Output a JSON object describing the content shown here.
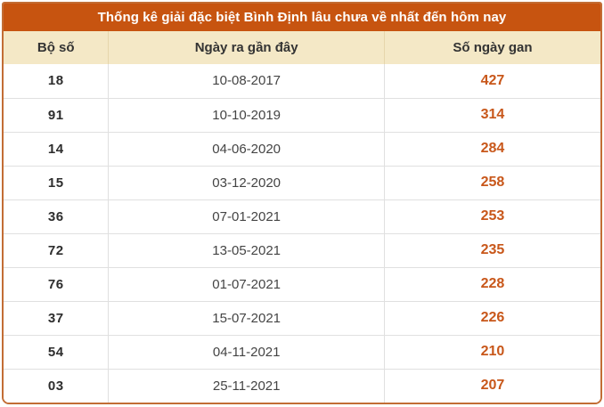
{
  "chart_data": {
    "type": "table",
    "title": "Thống kê giải đặc biệt Bình Định lâu chưa về nhất đến hôm nay",
    "columns": [
      "Bộ số",
      "Ngày ra gần đây",
      "Số ngày gan"
    ],
    "rows": [
      [
        "18",
        "10-08-2017",
        "427"
      ],
      [
        "91",
        "10-10-2019",
        "314"
      ],
      [
        "14",
        "04-06-2020",
        "284"
      ],
      [
        "15",
        "03-12-2020",
        "258"
      ],
      [
        "36",
        "07-01-2021",
        "253"
      ],
      [
        "72",
        "13-05-2021",
        "235"
      ],
      [
        "76",
        "01-07-2021",
        "228"
      ],
      [
        "37",
        "15-07-2021",
        "226"
      ],
      [
        "54",
        "04-11-2021",
        "210"
      ],
      [
        "03",
        "25-11-2021",
        "207"
      ]
    ]
  },
  "colors": {
    "accent_orange": "#c75410",
    "border_orange": "#c26d35",
    "header_bg": "#f4e8c6",
    "header_divider": "#e6d6ac",
    "value_orange": "#c8571a",
    "row_divider": "#e0e0e0",
    "header_text": "#333333",
    "cell_text": "#444444",
    "bo_so_text": "#2d2d2d"
  }
}
